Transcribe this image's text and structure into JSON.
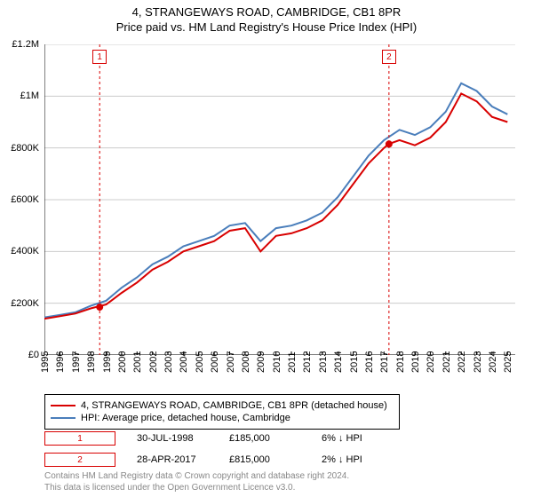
{
  "title": "4, STRANGEWAYS ROAD, CAMBRIDGE, CB1 8PR",
  "subtitle": "Price paid vs. HM Land Registry's House Price Index (HPI)",
  "chart": {
    "type": "line",
    "background_color": "#ffffff",
    "grid_color": "#cccccc",
    "axis_color": "#000000",
    "xlim": [
      1995,
      2025.5
    ],
    "ylim": [
      0,
      1200000
    ],
    "ytick_step": 200000,
    "ytick_labels": [
      "£0",
      "£200K",
      "£400K",
      "£600K",
      "£800K",
      "£1M",
      "£1.2M"
    ],
    "xticks": [
      1995,
      1996,
      1997,
      1998,
      1999,
      2000,
      2001,
      2002,
      2003,
      2004,
      2005,
      2006,
      2007,
      2008,
      2009,
      2010,
      2011,
      2012,
      2013,
      2014,
      2015,
      2016,
      2017,
      2018,
      2019,
      2020,
      2021,
      2022,
      2023,
      2024,
      2025
    ],
    "label_fontsize": 11,
    "title_fontsize": 13,
    "series": [
      {
        "name": "4, STRANGEWAYS ROAD, CAMBRIDGE, CB1 8PR (detached house)",
        "color": "#d80000",
        "line_width": 2,
        "x": [
          1995,
          1996,
          1997,
          1998,
          1999,
          2000,
          2001,
          2002,
          2003,
          2004,
          2005,
          2006,
          2007,
          2008,
          2009,
          2010,
          2011,
          2012,
          2013,
          2014,
          2015,
          2016,
          2017,
          2017.3,
          2018,
          2019,
          2020,
          2021,
          2022,
          2023,
          2024,
          2025
        ],
        "y": [
          140000,
          150000,
          160000,
          180000,
          195000,
          240000,
          280000,
          330000,
          360000,
          400000,
          420000,
          440000,
          480000,
          490000,
          400000,
          460000,
          470000,
          490000,
          520000,
          580000,
          660000,
          740000,
          800000,
          815000,
          830000,
          810000,
          840000,
          900000,
          1010000,
          980000,
          920000,
          900000
        ]
      },
      {
        "name": "HPI: Average price, detached house, Cambridge",
        "color": "#4a7ebb",
        "line_width": 2,
        "x": [
          1995,
          1996,
          1997,
          1998,
          1999,
          2000,
          2001,
          2002,
          2003,
          2004,
          2005,
          2006,
          2007,
          2008,
          2009,
          2010,
          2011,
          2012,
          2013,
          2014,
          2015,
          2016,
          2017,
          2018,
          2019,
          2020,
          2021,
          2022,
          2023,
          2024,
          2025
        ],
        "y": [
          145000,
          155000,
          165000,
          190000,
          210000,
          260000,
          300000,
          350000,
          380000,
          420000,
          440000,
          460000,
          500000,
          510000,
          440000,
          490000,
          500000,
          520000,
          550000,
          610000,
          690000,
          770000,
          830000,
          870000,
          850000,
          880000,
          940000,
          1050000,
          1020000,
          960000,
          930000
        ]
      }
    ],
    "markers": [
      {
        "n": "1",
        "x": 1998.58,
        "y": 185000,
        "color": "#d80000"
      },
      {
        "n": "2",
        "x": 2017.32,
        "y": 815000,
        "color": "#d80000"
      }
    ]
  },
  "legend": {
    "items": [
      {
        "color": "#d80000",
        "label": "4, STRANGEWAYS ROAD, CAMBRIDGE, CB1 8PR (detached house)"
      },
      {
        "color": "#4a7ebb",
        "label": "HPI: Average price, detached house, Cambridge"
      }
    ]
  },
  "sales": [
    {
      "n": "1",
      "color": "#d80000",
      "date": "30-JUL-1998",
      "price": "£185,000",
      "delta": "6%",
      "arrow": "↓",
      "vs": "HPI"
    },
    {
      "n": "2",
      "color": "#d80000",
      "date": "28-APR-2017",
      "price": "£815,000",
      "delta": "2%",
      "arrow": "↓",
      "vs": "HPI"
    }
  ],
  "footer": {
    "line1": "Contains HM Land Registry data © Crown copyright and database right 2024.",
    "line2": "This data is licensed under the Open Government Licence v3.0."
  }
}
